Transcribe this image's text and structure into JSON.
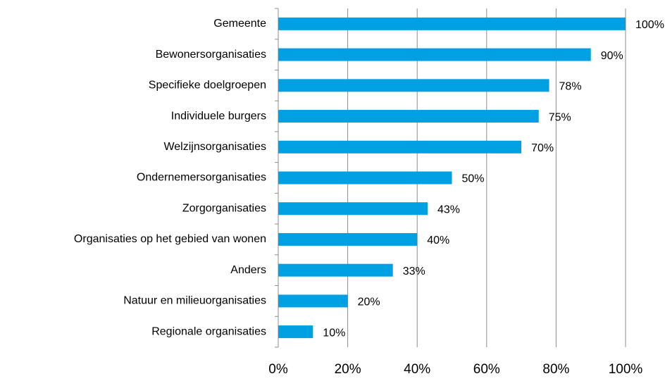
{
  "chart_data": {
    "type": "bar",
    "orientation": "horizontal",
    "categories": [
      "Gemeente",
      "Bewonersorganisaties",
      "Specifieke doelgroepen",
      "Individuele burgers",
      "Welzijnsorganisaties",
      "Ondernemersorganisaties",
      "Zorgorganisaties",
      "Organisaties op het gebied van wonen",
      "Anders",
      "Natuur en milieuorganisaties",
      "Regionale organisaties"
    ],
    "values": [
      100,
      90,
      78,
      75,
      70,
      50,
      43,
      40,
      33,
      20,
      10
    ],
    "value_labels": [
      "100%",
      "90%",
      "78%",
      "75%",
      "70%",
      "50%",
      "43%",
      "40%",
      "33%",
      "20%",
      "10%"
    ],
    "color": "#00a0e3",
    "xlim": [
      0,
      100
    ],
    "xticks": [
      {
        "value": 0,
        "label": "0%"
      },
      {
        "value": 20,
        "label": "20%"
      },
      {
        "value": 40,
        "label": "40%"
      },
      {
        "value": 60,
        "label": "60%"
      },
      {
        "value": 80,
        "label": "80%"
      },
      {
        "value": 100,
        "label": "100%"
      }
    ],
    "grid": true
  }
}
